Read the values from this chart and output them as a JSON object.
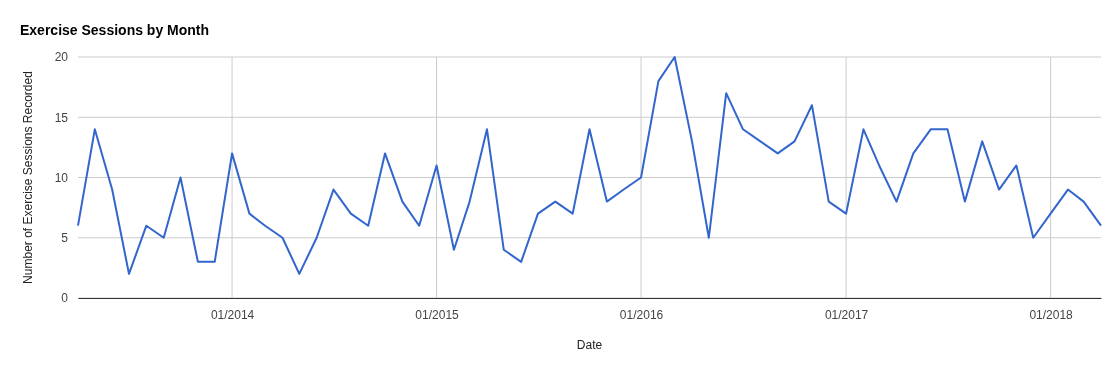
{
  "chart_data": {
    "type": "line",
    "title": "Exercise Sessions by Month",
    "xlabel": "Date",
    "ylabel": "Number of Exercise Sessions Recorded",
    "x": [
      "2013-04",
      "2013-05",
      "2013-06",
      "2013-07",
      "2013-08",
      "2013-09",
      "2013-10",
      "2013-11",
      "2013-12",
      "2014-01",
      "2014-02",
      "2014-03",
      "2014-04",
      "2014-05",
      "2014-06",
      "2014-07",
      "2014-08",
      "2014-09",
      "2014-10",
      "2014-11",
      "2014-12",
      "2015-01",
      "2015-02",
      "2015-03",
      "2015-04",
      "2015-05",
      "2015-06",
      "2015-07",
      "2015-08",
      "2015-09",
      "2015-10",
      "2015-11",
      "2015-12",
      "2016-01",
      "2016-02",
      "2016-03",
      "2016-04",
      "2016-05",
      "2016-06",
      "2016-07",
      "2016-08",
      "2016-09",
      "2016-10",
      "2016-11",
      "2016-12",
      "2017-01",
      "2017-02",
      "2017-03",
      "2017-04",
      "2017-05",
      "2017-06",
      "2017-07",
      "2017-08",
      "2017-09",
      "2017-10",
      "2017-11",
      "2017-12",
      "2018-01",
      "2018-02",
      "2018-03",
      "2018-04"
    ],
    "series": [
      {
        "color": "#3366cc",
        "values": [
          6,
          14,
          9,
          2,
          6,
          5,
          10,
          3,
          3,
          12,
          7,
          6,
          5,
          2,
          5,
          9,
          7,
          6,
          12,
          8,
          6,
          11,
          4,
          8,
          14,
          4,
          3,
          7,
          8,
          7,
          14,
          8,
          9,
          10,
          18,
          20,
          13,
          5,
          17,
          14,
          13,
          12,
          13,
          16,
          8,
          7,
          14,
          11,
          8,
          12,
          14,
          14,
          8,
          13,
          9,
          11,
          5,
          7,
          9,
          8,
          6
        ]
      }
    ],
    "xlim": [
      "2013-04",
      "2018-04"
    ],
    "xticks": [
      {
        "value": "2014-01",
        "label": "01/2014"
      },
      {
        "value": "2015-01",
        "label": "01/2015"
      },
      {
        "value": "2016-01",
        "label": "01/2016"
      },
      {
        "value": "2017-01",
        "label": "01/2017"
      },
      {
        "value": "2018-01",
        "label": "01/2018"
      }
    ],
    "ylim": [
      0,
      20
    ],
    "yticks": [
      0,
      5,
      10,
      15,
      20
    ],
    "grid": true,
    "marker": "none",
    "line_style": "solid"
  }
}
